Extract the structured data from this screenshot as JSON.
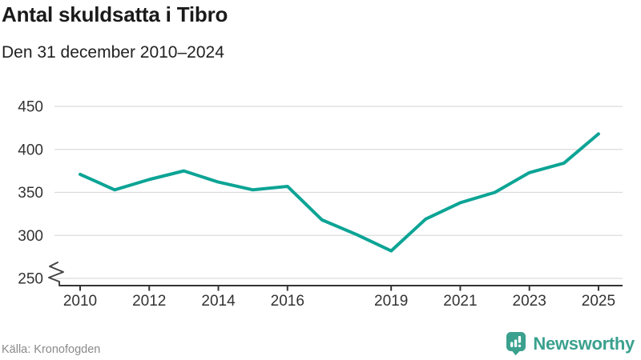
{
  "header": {
    "title": "Antal skuldsatta i Tibro",
    "subtitle": "Den 31 december 2010–2024"
  },
  "footer": {
    "source": "Källa: Kronofogden",
    "brand": "Newsworthy"
  },
  "colors": {
    "line": "#0ca495",
    "brand": "#3aa18e",
    "axis": "#333333",
    "grid": "#dcdcdc",
    "text": "#1a1a1a",
    "muted": "#8a8a8a"
  },
  "chart_data": {
    "type": "line",
    "title": "Antal skuldsatta i Tibro",
    "subtitle": "Den 31 december 2010–2024",
    "x": [
      2010,
      2011,
      2012,
      2013,
      2014,
      2015,
      2016,
      2017,
      2018,
      2019,
      2020,
      2021,
      2022,
      2023,
      2024,
      2025
    ],
    "values": [
      371,
      353,
      365,
      375,
      362,
      353,
      357,
      318,
      301,
      282,
      319,
      338,
      350,
      373,
      384,
      418
    ],
    "series_name": "Antal skuldsatta",
    "x_tick_years": [
      2010,
      2012,
      2014,
      2016,
      2019,
      2021,
      2023,
      2025
    ],
    "x_tick_labels": [
      "2010",
      "2012",
      "2014",
      "2016",
      "2019",
      "2021",
      "2023",
      "2025"
    ],
    "y_ticks": [
      450,
      400,
      350,
      300,
      250
    ],
    "y_tick_labels": [
      "450",
      "400",
      "350",
      "300",
      "250"
    ],
    "ylim": [
      250,
      450
    ],
    "axis_break": true,
    "grid": "horizontal",
    "legend": "none",
    "line_color": "#0ca495",
    "source": "Källa: Kronofogden"
  }
}
